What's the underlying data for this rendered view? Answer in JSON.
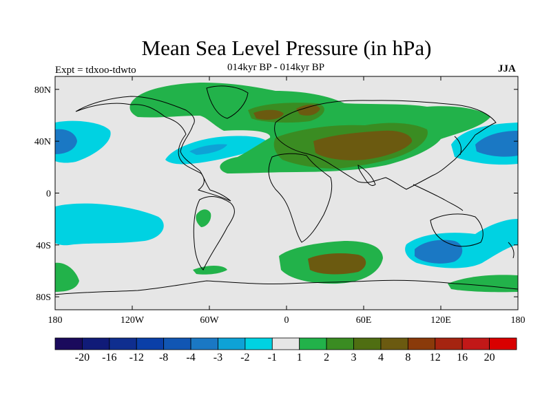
{
  "title": "Mean Sea Level Pressure (in hPa)",
  "subtitle": "014kyr BP - 014kyr BP",
  "experiment": "Expt = tdxoo-tdwto",
  "season": "JJA",
  "map": {
    "projection": "cylindrical equidistant",
    "lon_range": [
      -180,
      180
    ],
    "lat_range": [
      -90,
      90
    ],
    "lat_ticks": [
      {
        "label": "80N",
        "lat": 80
      },
      {
        "label": "40N",
        "lat": 40
      },
      {
        "label": "0",
        "lat": 0
      },
      {
        "label": "40S",
        "lat": -40
      },
      {
        "label": "80S",
        "lat": -80
      }
    ],
    "lon_ticks": [
      {
        "label": "180",
        "lon": -180
      },
      {
        "label": "120W",
        "lon": -120
      },
      {
        "label": "60W",
        "lon": -60
      },
      {
        "label": "0",
        "lon": 0
      },
      {
        "label": "60E",
        "lon": 60
      },
      {
        "label": "120E",
        "lon": 120
      },
      {
        "label": "180",
        "lon": 180
      }
    ],
    "background_color": "#e6e6e6"
  },
  "colorbar": {
    "labels": [
      "-20",
      "-16",
      "-12",
      "-8",
      "-4",
      "-3",
      "-2",
      "-1",
      "1",
      "2",
      "3",
      "4",
      "8",
      "12",
      "16",
      "20"
    ],
    "colors": [
      "#1a0a5c",
      "#101b78",
      "#0f2e8f",
      "#0a3fa8",
      "#1156b3",
      "#1a78c4",
      "#0ea2d6",
      "#00d2e2",
      "#e6e6e6",
      "#22b24a",
      "#3a8c22",
      "#4f6e12",
      "#6b5a10",
      "#8a3a0a",
      "#a52410",
      "#c21818",
      "#d90000"
    ]
  }
}
